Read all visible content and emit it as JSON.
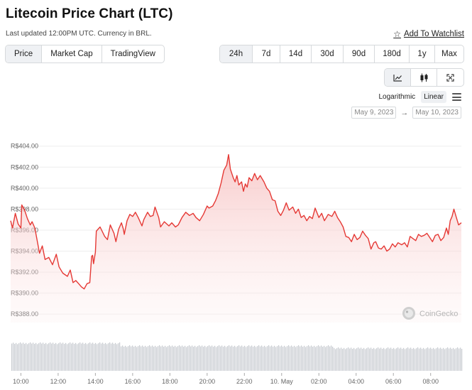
{
  "header": {
    "title": "Litecoin Price Chart (LTC)",
    "subtitle": "Last updated 12:00PM UTC. Currency in BRL.",
    "watchlist_label": "Add To Watchlist"
  },
  "view_tabs": [
    "Price",
    "Market Cap",
    "TradingView"
  ],
  "view_tabs_active": "Price",
  "range_tabs": [
    "24h",
    "7d",
    "14d",
    "30d",
    "90d",
    "180d",
    "1y",
    "Max"
  ],
  "range_tabs_active": "24h",
  "chart_type_icons": [
    "line-chart-icon",
    "candlestick-icon",
    "fullscreen-icon"
  ],
  "scale": {
    "logarithmic": "Logarithmic",
    "linear": "Linear",
    "active": "Linear"
  },
  "date_range": {
    "from": "May 9, 2023",
    "to": "May 10, 2023"
  },
  "watermark": "CoinGecko",
  "colors": {
    "line": "#e53935",
    "fill_top": "#f8caca",
    "volume": "#c6cacf",
    "grid": "#eeeeee"
  },
  "chart_data": {
    "type": "area",
    "title": "",
    "xlabel": "",
    "ylabel": "",
    "ylim": [
      387.2,
      405.2
    ],
    "y_ticks": [
      {
        "value": 404,
        "label": "R$404.00"
      },
      {
        "value": 402,
        "label": "R$402.00"
      },
      {
        "value": 400,
        "label": "R$400.00"
      },
      {
        "value": 398,
        "label": "R$398.00"
      },
      {
        "value": 396,
        "label": "R$396.00"
      },
      {
        "value": 394,
        "label": "R$394.00"
      },
      {
        "value": 392,
        "label": "R$392.00"
      },
      {
        "value": 390,
        "label": "R$390.00"
      },
      {
        "value": 388,
        "label": "R$388.00"
      }
    ],
    "x_ticks": [
      {
        "hour": 10,
        "label": "10:00"
      },
      {
        "hour": 12,
        "label": "12:00"
      },
      {
        "hour": 14,
        "label": "14:00"
      },
      {
        "hour": 16,
        "label": "16:00"
      },
      {
        "hour": 18,
        "label": "18:00"
      },
      {
        "hour": 20,
        "label": "20:00"
      },
      {
        "hour": 22,
        "label": "22:00"
      },
      {
        "hour": 24,
        "label": "10. May"
      },
      {
        "hour": 26,
        "label": "02:00"
      },
      {
        "hour": 28,
        "label": "04:00"
      },
      {
        "hour": 30,
        "label": "06:00"
      },
      {
        "hour": 32,
        "label": "08:00"
      }
    ],
    "series": [
      {
        "values": [
          [
            9.45,
            396.9
          ],
          [
            9.55,
            396.2
          ],
          [
            9.7,
            397.6
          ],
          [
            9.85,
            396.6
          ],
          [
            10.0,
            396.2
          ],
          [
            10.05,
            398.4
          ],
          [
            10.2,
            397.9
          ],
          [
            10.35,
            397.1
          ],
          [
            10.5,
            396.5
          ],
          [
            10.6,
            396.8
          ],
          [
            10.75,
            396.2
          ],
          [
            11.0,
            393.8
          ],
          [
            11.15,
            394.5
          ],
          [
            11.3,
            393.2
          ],
          [
            11.5,
            393.4
          ],
          [
            11.7,
            392.7
          ],
          [
            11.9,
            393.7
          ],
          [
            12.05,
            392.5
          ],
          [
            12.25,
            391.9
          ],
          [
            12.5,
            391.6
          ],
          [
            12.65,
            392.2
          ],
          [
            12.8,
            391.0
          ],
          [
            12.95,
            391.2
          ],
          [
            13.1,
            390.9
          ],
          [
            13.25,
            390.6
          ],
          [
            13.4,
            390.4
          ],
          [
            13.55,
            390.9
          ],
          [
            13.7,
            391.0
          ],
          [
            13.8,
            393.5
          ],
          [
            13.85,
            393.6
          ],
          [
            13.9,
            392.8
          ],
          [
            14.0,
            393.9
          ],
          [
            14.05,
            395.9
          ],
          [
            14.25,
            396.3
          ],
          [
            14.5,
            395.4
          ],
          [
            14.65,
            395.1
          ],
          [
            14.8,
            396.5
          ],
          [
            15.0,
            395.7
          ],
          [
            15.1,
            394.9
          ],
          [
            15.25,
            396.1
          ],
          [
            15.4,
            396.7
          ],
          [
            15.5,
            396.1
          ],
          [
            15.55,
            395.6
          ],
          [
            15.7,
            396.9
          ],
          [
            15.85,
            397.5
          ],
          [
            16.0,
            397.3
          ],
          [
            16.15,
            397.7
          ],
          [
            16.3,
            397.2
          ],
          [
            16.5,
            396.4
          ],
          [
            16.6,
            397.0
          ],
          [
            16.8,
            397.7
          ],
          [
            16.95,
            397.3
          ],
          [
            17.1,
            397.4
          ],
          [
            17.2,
            398.2
          ],
          [
            17.4,
            397.2
          ],
          [
            17.5,
            396.3
          ],
          [
            17.7,
            396.8
          ],
          [
            17.95,
            396.4
          ],
          [
            18.1,
            396.7
          ],
          [
            18.3,
            396.3
          ],
          [
            18.45,
            396.5
          ],
          [
            18.65,
            397.2
          ],
          [
            18.85,
            397.7
          ],
          [
            19.05,
            397.4
          ],
          [
            19.25,
            397.6
          ],
          [
            19.4,
            397.2
          ],
          [
            19.6,
            396.9
          ],
          [
            19.8,
            397.5
          ],
          [
            20.0,
            398.3
          ],
          [
            20.1,
            398.1
          ],
          [
            20.3,
            398.3
          ],
          [
            20.45,
            398.8
          ],
          [
            20.6,
            399.5
          ],
          [
            20.75,
            400.5
          ],
          [
            20.9,
            401.7
          ],
          [
            21.05,
            402.2
          ],
          [
            21.15,
            403.2
          ],
          [
            21.25,
            401.8
          ],
          [
            21.4,
            401.0
          ],
          [
            21.5,
            400.6
          ],
          [
            21.6,
            401.2
          ],
          [
            21.7,
            400.3
          ],
          [
            21.85,
            400.6
          ],
          [
            21.95,
            399.7
          ],
          [
            22.05,
            400.4
          ],
          [
            22.15,
            400.1
          ],
          [
            22.25,
            401.0
          ],
          [
            22.4,
            400.7
          ],
          [
            22.55,
            401.4
          ],
          [
            22.7,
            400.8
          ],
          [
            22.85,
            401.2
          ],
          [
            23.05,
            400.6
          ],
          [
            23.2,
            400.0
          ],
          [
            23.35,
            399.7
          ],
          [
            23.5,
            398.9
          ],
          [
            23.65,
            398.8
          ],
          [
            23.8,
            397.8
          ],
          [
            23.95,
            397.4
          ],
          [
            24.1,
            397.9
          ],
          [
            24.25,
            398.6
          ],
          [
            24.4,
            397.9
          ],
          [
            24.6,
            398.2
          ],
          [
            24.75,
            397.6
          ],
          [
            24.9,
            398.0
          ],
          [
            25.05,
            397.2
          ],
          [
            25.2,
            397.4
          ],
          [
            25.35,
            396.9
          ],
          [
            25.5,
            397.3
          ],
          [
            25.65,
            397.1
          ],
          [
            25.8,
            398.1
          ],
          [
            26.0,
            397.2
          ],
          [
            26.15,
            397.6
          ],
          [
            26.3,
            396.9
          ],
          [
            26.5,
            397.5
          ],
          [
            26.7,
            397.3
          ],
          [
            26.85,
            397.8
          ],
          [
            27.0,
            397.2
          ],
          [
            27.15,
            396.8
          ],
          [
            27.3,
            396.3
          ],
          [
            27.45,
            395.4
          ],
          [
            27.6,
            395.3
          ],
          [
            27.75,
            394.9
          ],
          [
            27.9,
            395.6
          ],
          [
            28.05,
            395.1
          ],
          [
            28.2,
            395.3
          ],
          [
            28.35,
            395.9
          ],
          [
            28.5,
            395.5
          ],
          [
            28.65,
            395.2
          ],
          [
            28.8,
            394.2
          ],
          [
            28.95,
            394.8
          ],
          [
            29.05,
            394.9
          ],
          [
            29.2,
            394.3
          ],
          [
            29.35,
            394.2
          ],
          [
            29.5,
            394.5
          ],
          [
            29.65,
            394.0
          ],
          [
            29.8,
            394.2
          ],
          [
            29.95,
            394.7
          ],
          [
            30.1,
            394.4
          ],
          [
            30.25,
            394.8
          ],
          [
            30.45,
            394.6
          ],
          [
            30.6,
            394.8
          ],
          [
            30.75,
            394.4
          ],
          [
            30.9,
            395.4
          ],
          [
            31.05,
            395.2
          ],
          [
            31.2,
            395.0
          ],
          [
            31.35,
            395.6
          ],
          [
            31.5,
            395.4
          ],
          [
            31.65,
            395.5
          ],
          [
            31.8,
            395.7
          ],
          [
            31.95,
            395.3
          ],
          [
            32.1,
            394.9
          ],
          [
            32.25,
            395.5
          ],
          [
            32.4,
            395.6
          ],
          [
            32.55,
            395.0
          ],
          [
            32.7,
            395.3
          ],
          [
            32.85,
            396.2
          ],
          [
            32.95,
            395.6
          ],
          [
            33.05,
            396.9
          ],
          [
            33.15,
            397.3
          ],
          [
            33.25,
            398.0
          ],
          [
            33.35,
            397.4
          ],
          [
            33.5,
            396.5
          ],
          [
            33.65,
            396.7
          ]
        ]
      }
    ],
    "volume_note": "volume bars shown in light gray beneath price"
  }
}
